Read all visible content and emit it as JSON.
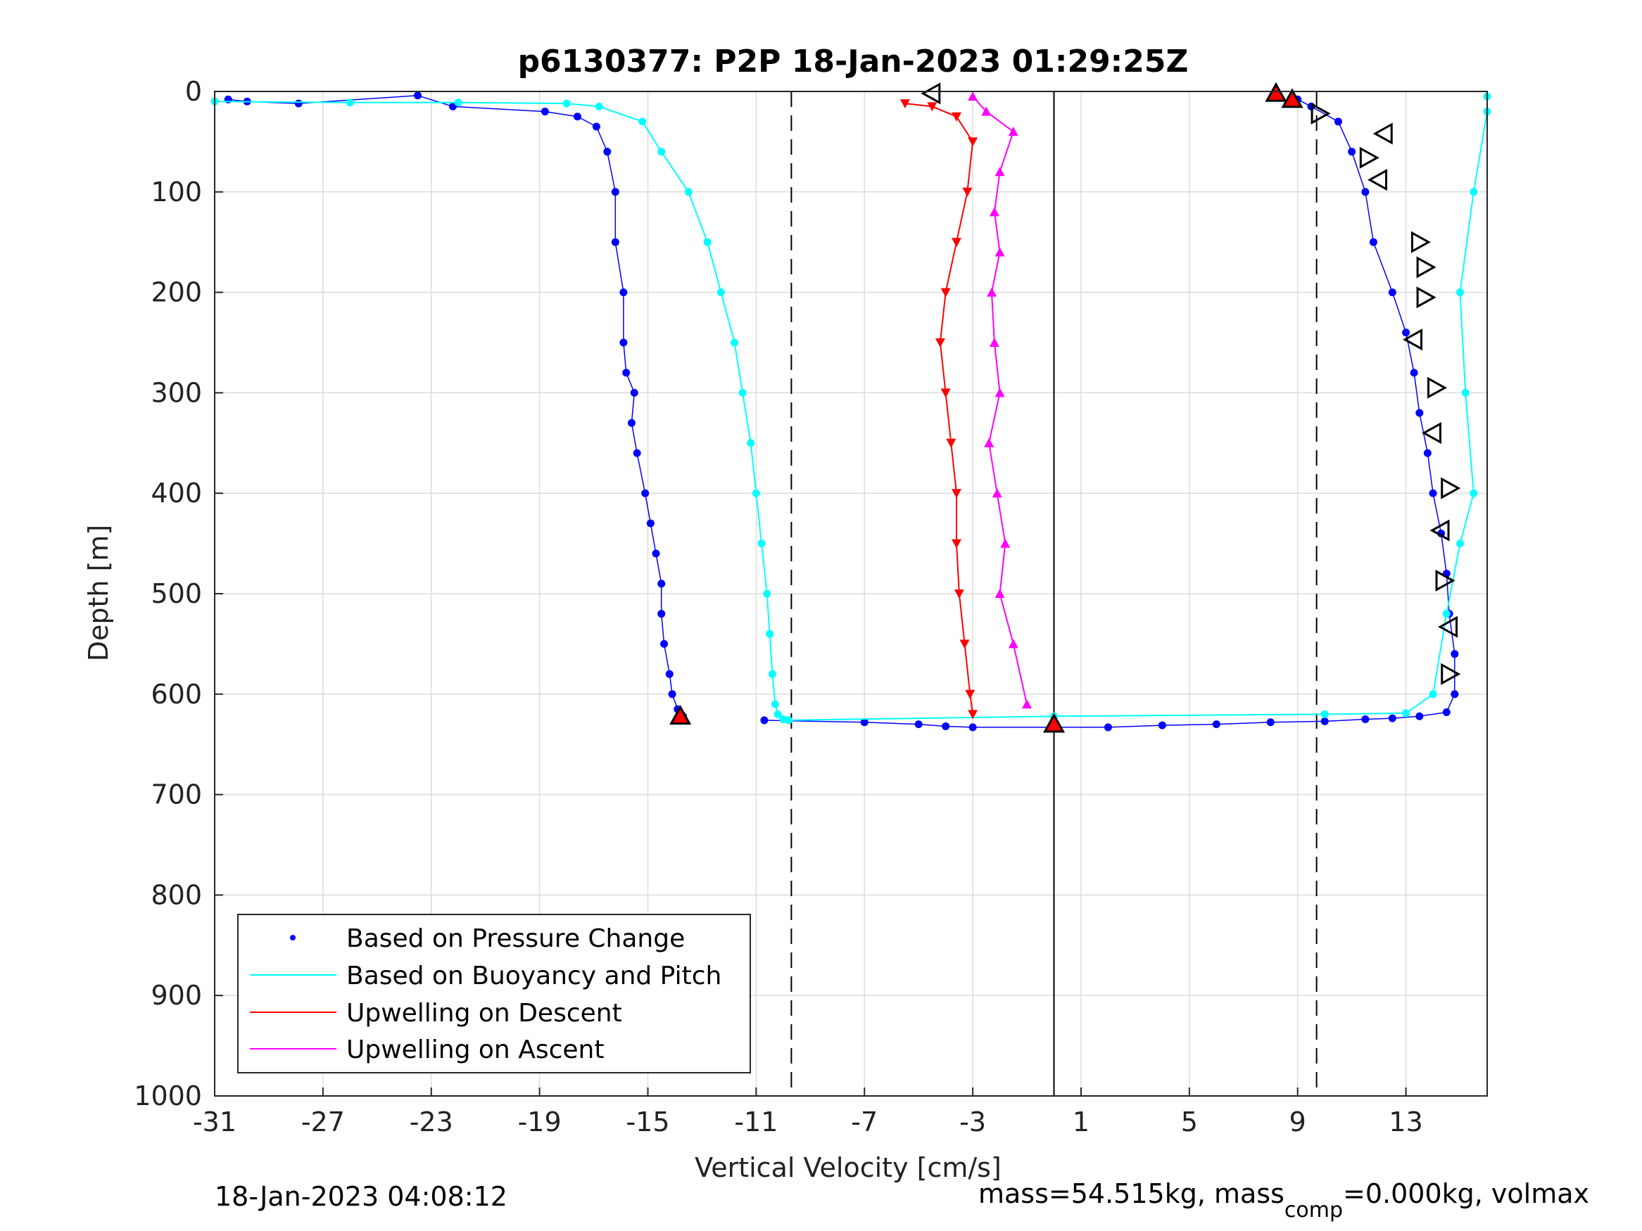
{
  "chart_data": {
    "type": "scatter",
    "title": "p6130377: P2P 18-Jan-2023 01:29:25Z",
    "xlabel": "Vertical Velocity [cm/s]",
    "ylabel": "Depth [m]",
    "xlim": [
      -31,
      16
    ],
    "ylim": [
      0,
      1000
    ],
    "y_reversed": true,
    "grid": true,
    "xticks": [
      -31,
      -27,
      -23,
      -19,
      -15,
      -11,
      -7,
      -3,
      1,
      5,
      9,
      13
    ],
    "yticks": [
      0,
      100,
      200,
      300,
      400,
      500,
      600,
      700,
      800,
      900,
      1000
    ],
    "reference_lines": {
      "dashed": [
        -9.7,
        9.7
      ],
      "solid": [
        0
      ]
    },
    "legend": {
      "placement": "bottom-left",
      "entries": [
        {
          "label": "Based on Pressure Change",
          "color": "#0000ff",
          "marker": "dot"
        },
        {
          "label": "Based on Buoyancy and Pitch",
          "color": "#00ffff",
          "marker": "line"
        },
        {
          "label": "Upwelling on Descent",
          "color": "#ff0000",
          "marker": "line"
        },
        {
          "label": "Upwelling on Ascent",
          "color": "#ff00ff",
          "marker": "line"
        }
      ]
    },
    "series": [
      {
        "key": "pressure_descent",
        "color": "#0000ff",
        "x": [
          -30.5,
          -29.8,
          -27.9,
          -23.5,
          -22.2,
          -18.8,
          -17.6,
          -16.9,
          -16.5,
          -16.2,
          -16.2,
          -15.9,
          -15.9,
          -15.8,
          -15.5,
          -15.6,
          -15.4,
          -15.1,
          -14.9,
          -14.7,
          -14.5,
          -14.5,
          -14.4,
          -14.2,
          -14.1,
          -13.9,
          -13.7
        ],
        "y": [
          8,
          10,
          12,
          4,
          15,
          20,
          25,
          35,
          60,
          100,
          150,
          200,
          250,
          280,
          300,
          330,
          360,
          400,
          430,
          460,
          490,
          520,
          550,
          580,
          600,
          615,
          622
        ]
      },
      {
        "key": "pressure_ascent",
        "color": "#0000ff",
        "x": [
          -10.7,
          -7.0,
          -5.0,
          -4.0,
          -3.0,
          2.0,
          4.0,
          6.0,
          8.0,
          10.0,
          11.5,
          12.5,
          13.5,
          14.5,
          14.8,
          14.8,
          14.6,
          14.5,
          14.3,
          14.0,
          13.8,
          13.5,
          13.3,
          13.0,
          12.5,
          11.8,
          11.5,
          11.0,
          10.5,
          9.5,
          9.0
        ],
        "y": [
          626,
          628,
          630,
          632,
          633,
          633,
          631,
          630,
          628,
          627,
          625,
          624,
          622,
          618,
          600,
          560,
          520,
          480,
          440,
          400,
          360,
          320,
          280,
          240,
          200,
          150,
          100,
          60,
          30,
          15,
          8
        ]
      },
      {
        "key": "buoyancy",
        "color": "#00ffff",
        "x": [
          -31,
          -26,
          -22,
          -18,
          -16.8,
          -15.2,
          -14.5,
          -13.5,
          -12.8,
          -12.3,
          -11.8,
          -11.5,
          -11.2,
          -11.0,
          -10.8,
          -10.6,
          -10.5,
          -10.4,
          -10.3,
          -10.2,
          -10.0,
          -9.8,
          0,
          10,
          13,
          14,
          14.5,
          15.0,
          15.5,
          15.2,
          15.0,
          15.5,
          16.0,
          16.0
        ],
        "y": [
          10,
          11,
          11,
          12,
          15,
          30,
          60,
          100,
          150,
          200,
          250,
          300,
          350,
          400,
          450,
          500,
          540,
          580,
          610,
          620,
          625,
          626,
          622,
          620,
          619,
          600,
          520,
          450,
          400,
          300,
          200,
          100,
          20,
          5
        ]
      },
      {
        "key": "upwell_descent",
        "color": "#ff0000",
        "x": [
          -5.5,
          -4.5,
          -3.6,
          -3.0,
          -3.2,
          -3.6,
          -4.0,
          -4.2,
          -4.0,
          -3.8,
          -3.6,
          -3.6,
          -3.5,
          -3.3,
          -3.1,
          -3.0
        ],
        "y": [
          12,
          15,
          25,
          50,
          100,
          150,
          200,
          250,
          300,
          350,
          400,
          450,
          500,
          550,
          600,
          620
        ]
      },
      {
        "key": "upwell_ascent",
        "color": "#ff00ff",
        "x": [
          -3.0,
          -2.5,
          -1.5,
          -2.0,
          -2.2,
          -2.0,
          -2.3,
          -2.2,
          -2.0,
          -2.4,
          -2.1,
          -1.8,
          -2.0,
          -1.5,
          -1.0
        ],
        "y": [
          5,
          20,
          40,
          80,
          120,
          160,
          200,
          250,
          300,
          350,
          400,
          450,
          500,
          550,
          610
        ]
      }
    ],
    "markers": [
      {
        "shape": "triangle-up",
        "fill": "#ff0000",
        "stroke": "#000",
        "x": 8.2,
        "y": 2
      },
      {
        "shape": "triangle-up",
        "fill": "#ff0000",
        "stroke": "#000",
        "x": 8.8,
        "y": 8
      },
      {
        "shape": "triangle-up",
        "fill": "#ff0000",
        "stroke": "#000",
        "x": -13.8,
        "y": 622
      },
      {
        "shape": "triangle-up",
        "fill": "#ff0000",
        "stroke": "#000",
        "x": 0.0,
        "y": 630
      },
      {
        "shape": "triangle-left",
        "fill": "none",
        "stroke": "#000",
        "x": -4.5,
        "y": 2
      },
      {
        "shape": "triangle-right",
        "fill": "none",
        "stroke": "#000",
        "x": 9.8,
        "y": 22
      },
      {
        "shape": "triangle-left",
        "fill": "none",
        "stroke": "#000",
        "x": 12.2,
        "y": 42
      },
      {
        "shape": "triangle-right",
        "fill": "none",
        "stroke": "#000",
        "x": 11.6,
        "y": 66
      },
      {
        "shape": "triangle-left",
        "fill": "none",
        "stroke": "#000",
        "x": 12.0,
        "y": 88
      },
      {
        "shape": "triangle-right",
        "fill": "none",
        "stroke": "#000",
        "x": 13.5,
        "y": 150
      },
      {
        "shape": "triangle-right",
        "fill": "none",
        "stroke": "#000",
        "x": 13.7,
        "y": 175
      },
      {
        "shape": "triangle-right",
        "fill": "none",
        "stroke": "#000",
        "x": 13.7,
        "y": 205
      },
      {
        "shape": "triangle-left",
        "fill": "none",
        "stroke": "#000",
        "x": 13.3,
        "y": 247
      },
      {
        "shape": "triangle-right",
        "fill": "none",
        "stroke": "#000",
        "x": 14.1,
        "y": 295
      },
      {
        "shape": "triangle-left",
        "fill": "none",
        "stroke": "#000",
        "x": 14.0,
        "y": 340
      },
      {
        "shape": "triangle-right",
        "fill": "none",
        "stroke": "#000",
        "x": 14.6,
        "y": 395
      },
      {
        "shape": "triangle-left",
        "fill": "none",
        "stroke": "#000",
        "x": 14.3,
        "y": 437
      },
      {
        "shape": "triangle-right",
        "fill": "none",
        "stroke": "#000",
        "x": 14.4,
        "y": 487
      },
      {
        "shape": "triangle-left",
        "fill": "none",
        "stroke": "#000",
        "x": 14.6,
        "y": 533
      },
      {
        "shape": "triangle-right",
        "fill": "none",
        "stroke": "#000",
        "x": 14.6,
        "y": 580
      }
    ]
  },
  "footer": {
    "timestamp": "18-Jan-2023 04:08:12",
    "mass_text_a": "mass=54.515kg, mass",
    "mass_sub": "comp",
    "mass_text_b": "=0.000kg, volmax"
  }
}
